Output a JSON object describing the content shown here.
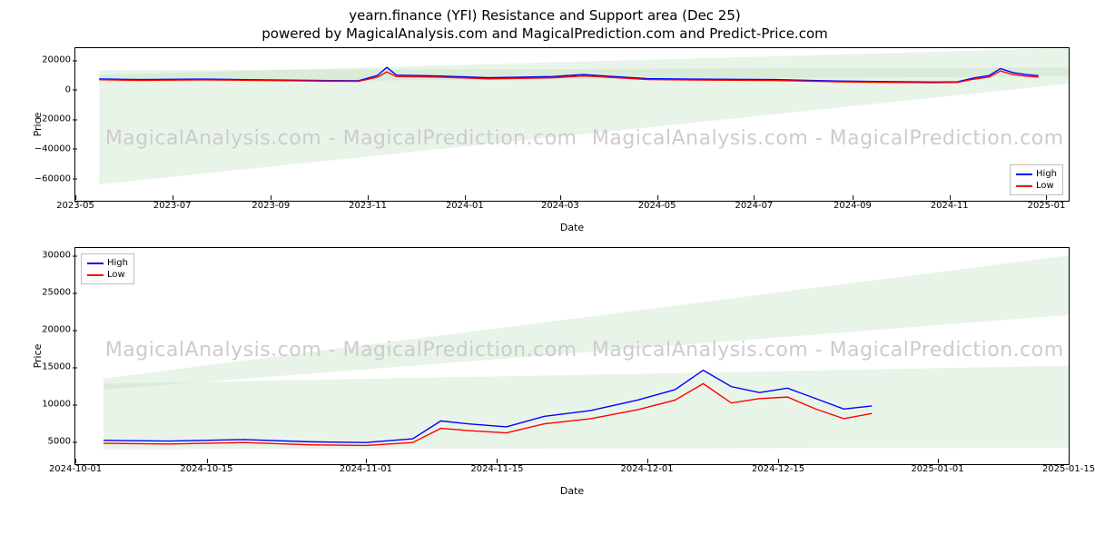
{
  "title": "yearn.finance (YFI) Resistance and Support area (Dec 25)",
  "subtitle": "powered by MagicalAnalysis.com and MagicalPrediction.com and Predict-Price.com",
  "watermark_text": "MagicalAnalysis.com - MagicalPrediction.com",
  "watermark_color": "#cccccc",
  "watermark_fontsize": 22,
  "background_color": "#ffffff",
  "border_color": "#000000",
  "grid_color": "#e0e0e0",
  "series_colors": {
    "high": "#0000ff",
    "low": "#ff0000"
  },
  "support_fill_color": "#a8d5a8",
  "legend": {
    "items": [
      {
        "label": "High",
        "color": "#0000ff"
      },
      {
        "label": "Low",
        "color": "#ff0000"
      }
    ]
  },
  "chart_top": {
    "type": "line",
    "y_label": "Price",
    "x_label": "Date",
    "legend_position": "bottom-right",
    "ylim": [
      -75000,
      28000
    ],
    "yticks": [
      -60000,
      -40000,
      -20000,
      0,
      20000
    ],
    "ytick_labels": [
      "−60000",
      "−40000",
      "−20000",
      "0",
      "20000"
    ],
    "x_range_days": 625,
    "x_start_label": "2023-05",
    "xticks": [
      {
        "label": "2023-05",
        "t": 0
      },
      {
        "label": "2023-07",
        "t": 61
      },
      {
        "label": "2023-09",
        "t": 123
      },
      {
        "label": "2023-11",
        "t": 184
      },
      {
        "label": "2024-01",
        "t": 245
      },
      {
        "label": "2024-03",
        "t": 305
      },
      {
        "label": "2024-05",
        "t": 366
      },
      {
        "label": "2024-07",
        "t": 427
      },
      {
        "label": "2024-09",
        "t": 489
      },
      {
        "label": "2024-11",
        "t": 550
      },
      {
        "label": "2025-01",
        "t": 611
      }
    ],
    "support_bands": [
      {
        "start_y0": -64000,
        "start_y1": 13000,
        "end_y0": 4000,
        "end_y1": 15000,
        "t0": 15,
        "t1": 625
      },
      {
        "start_y0": 5000,
        "start_y1": 10000,
        "end_y0": 9000,
        "end_y1": 28000,
        "t0": 15,
        "t1": 625
      }
    ],
    "high": [
      {
        "t": 15,
        "y": 7200
      },
      {
        "t": 40,
        "y": 6800
      },
      {
        "t": 80,
        "y": 7100
      },
      {
        "t": 120,
        "y": 6600
      },
      {
        "t": 160,
        "y": 6100
      },
      {
        "t": 178,
        "y": 6000
      },
      {
        "t": 190,
        "y": 9500
      },
      {
        "t": 196,
        "y": 15000
      },
      {
        "t": 202,
        "y": 9800
      },
      {
        "t": 230,
        "y": 9200
      },
      {
        "t": 260,
        "y": 8000
      },
      {
        "t": 300,
        "y": 8800
      },
      {
        "t": 320,
        "y": 10200
      },
      {
        "t": 328,
        "y": 9600
      },
      {
        "t": 360,
        "y": 7400
      },
      {
        "t": 400,
        "y": 7000
      },
      {
        "t": 440,
        "y": 6800
      },
      {
        "t": 480,
        "y": 5800
      },
      {
        "t": 510,
        "y": 5400
      },
      {
        "t": 540,
        "y": 5100
      },
      {
        "t": 555,
        "y": 5300
      },
      {
        "t": 565,
        "y": 7800
      },
      {
        "t": 575,
        "y": 9500
      },
      {
        "t": 582,
        "y": 14200
      },
      {
        "t": 590,
        "y": 11500
      },
      {
        "t": 598,
        "y": 10200
      },
      {
        "t": 606,
        "y": 9400
      }
    ],
    "low": [
      {
        "t": 15,
        "y": 6700
      },
      {
        "t": 40,
        "y": 6300
      },
      {
        "t": 80,
        "y": 6600
      },
      {
        "t": 120,
        "y": 6200
      },
      {
        "t": 160,
        "y": 5700
      },
      {
        "t": 178,
        "y": 5600
      },
      {
        "t": 190,
        "y": 8400
      },
      {
        "t": 196,
        "y": 12000
      },
      {
        "t": 202,
        "y": 8800
      },
      {
        "t": 230,
        "y": 8400
      },
      {
        "t": 260,
        "y": 7300
      },
      {
        "t": 300,
        "y": 8000
      },
      {
        "t": 320,
        "y": 9200
      },
      {
        "t": 328,
        "y": 8800
      },
      {
        "t": 360,
        "y": 6800
      },
      {
        "t": 400,
        "y": 6400
      },
      {
        "t": 440,
        "y": 6200
      },
      {
        "t": 480,
        "y": 5300
      },
      {
        "t": 510,
        "y": 4900
      },
      {
        "t": 540,
        "y": 4700
      },
      {
        "t": 555,
        "y": 4900
      },
      {
        "t": 565,
        "y": 7000
      },
      {
        "t": 575,
        "y": 8500
      },
      {
        "t": 582,
        "y": 12600
      },
      {
        "t": 590,
        "y": 10200
      },
      {
        "t": 598,
        "y": 9100
      },
      {
        "t": 606,
        "y": 8400
      }
    ]
  },
  "chart_bottom": {
    "type": "line",
    "y_label": "Price",
    "x_label": "Date",
    "legend_position": "top-left",
    "ylim": [
      2000,
      31000
    ],
    "yticks": [
      5000,
      10000,
      15000,
      20000,
      25000,
      30000
    ],
    "ytick_labels": [
      "5000",
      "10000",
      "15000",
      "20000",
      "25000",
      "30000"
    ],
    "x_range_days": 106,
    "x_start_label": "2024-10-01",
    "xticks": [
      {
        "label": "2024-10-01",
        "t": 0
      },
      {
        "label": "2024-10-15",
        "t": 14
      },
      {
        "label": "2024-11-01",
        "t": 31
      },
      {
        "label": "2024-11-15",
        "t": 45
      },
      {
        "label": "2024-12-01",
        "t": 61
      },
      {
        "label": "2024-12-15",
        "t": 75
      },
      {
        "label": "2025-01-01",
        "t": 92
      },
      {
        "label": "2025-01-15",
        "t": 106
      }
    ],
    "support_bands": [
      {
        "start_y0": 4000,
        "start_y1": 12800,
        "end_y0": 4200,
        "end_y1": 15200,
        "t0": 3,
        "t1": 106
      },
      {
        "start_y0": 12000,
        "start_y1": 13500,
        "end_y0": 22000,
        "end_y1": 30000,
        "t0": 3,
        "t1": 106
      }
    ],
    "high": [
      {
        "t": 3,
        "y": 5200
      },
      {
        "t": 10,
        "y": 5100
      },
      {
        "t": 18,
        "y": 5300
      },
      {
        "t": 25,
        "y": 5000
      },
      {
        "t": 31,
        "y": 4900
      },
      {
        "t": 36,
        "y": 5400
      },
      {
        "t": 39,
        "y": 7800
      },
      {
        "t": 42,
        "y": 7400
      },
      {
        "t": 46,
        "y": 7000
      },
      {
        "t": 50,
        "y": 8400
      },
      {
        "t": 55,
        "y": 9200
      },
      {
        "t": 60,
        "y": 10600
      },
      {
        "t": 64,
        "y": 12000
      },
      {
        "t": 67,
        "y": 14600
      },
      {
        "t": 70,
        "y": 12400
      },
      {
        "t": 73,
        "y": 11600
      },
      {
        "t": 76,
        "y": 12200
      },
      {
        "t": 79,
        "y": 10800
      },
      {
        "t": 82,
        "y": 9400
      },
      {
        "t": 85,
        "y": 9800
      }
    ],
    "low": [
      {
        "t": 3,
        "y": 4800
      },
      {
        "t": 10,
        "y": 4700
      },
      {
        "t": 18,
        "y": 4900
      },
      {
        "t": 25,
        "y": 4600
      },
      {
        "t": 31,
        "y": 4500
      },
      {
        "t": 36,
        "y": 4900
      },
      {
        "t": 39,
        "y": 6800
      },
      {
        "t": 42,
        "y": 6500
      },
      {
        "t": 46,
        "y": 6200
      },
      {
        "t": 50,
        "y": 7400
      },
      {
        "t": 55,
        "y": 8100
      },
      {
        "t": 60,
        "y": 9300
      },
      {
        "t": 64,
        "y": 10600
      },
      {
        "t": 67,
        "y": 12800
      },
      {
        "t": 70,
        "y": 10200
      },
      {
        "t": 73,
        "y": 10800
      },
      {
        "t": 76,
        "y": 11000
      },
      {
        "t": 79,
        "y": 9400
      },
      {
        "t": 82,
        "y": 8100
      },
      {
        "t": 85,
        "y": 8800
      }
    ]
  }
}
